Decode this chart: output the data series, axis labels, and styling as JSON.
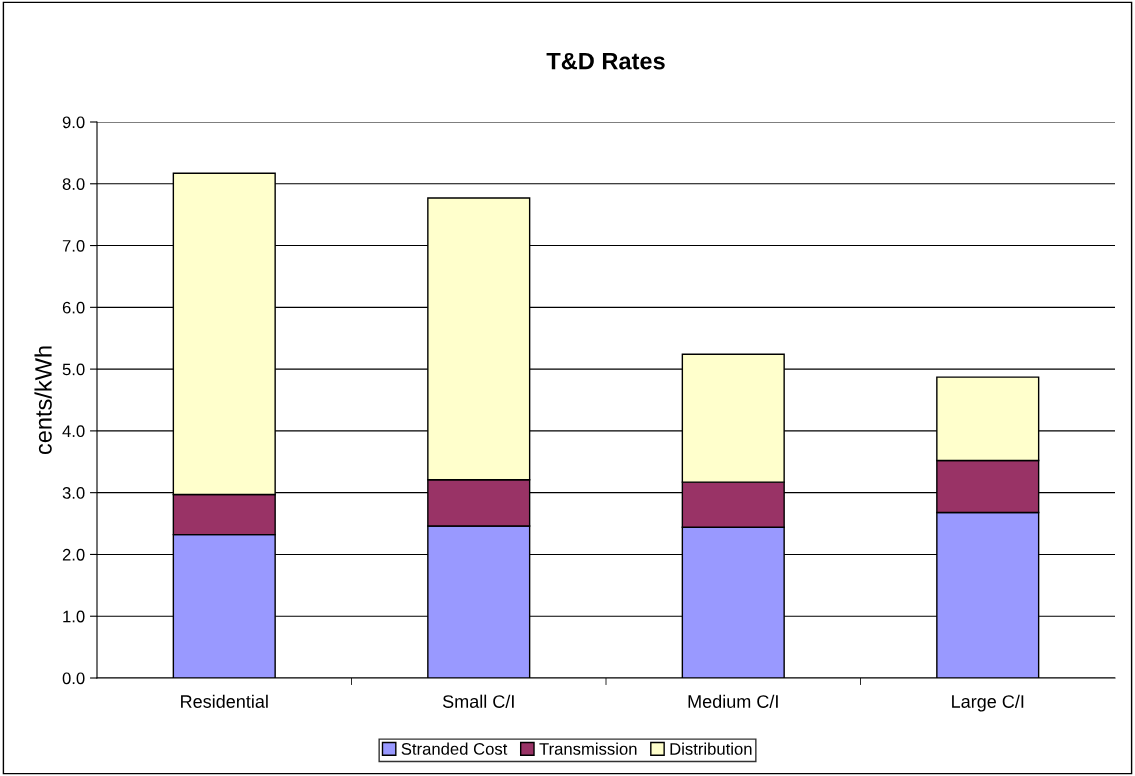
{
  "chart_data": {
    "type": "bar",
    "title": "T&D Rates",
    "ylabel": "cents/kWh",
    "stacked": true,
    "categories": [
      "Residential",
      "Small C/I",
      "Medium C/I",
      "Large C/I"
    ],
    "series": [
      {
        "name": "Stranded Cost",
        "color": "#9999ff",
        "values": [
          2.32,
          2.46,
          2.44,
          2.68
        ]
      },
      {
        "name": "Transmission",
        "color": "#993366",
        "values": [
          0.65,
          0.75,
          0.73,
          0.84
        ]
      },
      {
        "name": "Distribution",
        "color": "#ffffcc",
        "values": [
          5.2,
          4.56,
          2.07,
          1.35
        ]
      }
    ],
    "ylim": [
      0,
      9
    ],
    "yticks": [
      {
        "value": 0,
        "label": "0.0"
      },
      {
        "value": 1,
        "label": "1.0"
      },
      {
        "value": 2,
        "label": "2.0"
      },
      {
        "value": 3,
        "label": "3.0"
      },
      {
        "value": 4,
        "label": "4.0"
      },
      {
        "value": 5,
        "label": "5.0"
      },
      {
        "value": 6,
        "label": "6.0"
      },
      {
        "value": 7,
        "label": "7.0"
      },
      {
        "value": 8,
        "label": "8.0"
      },
      {
        "value": 9,
        "label": "9.0"
      }
    ],
    "grid": "y",
    "legend": "bottom"
  }
}
